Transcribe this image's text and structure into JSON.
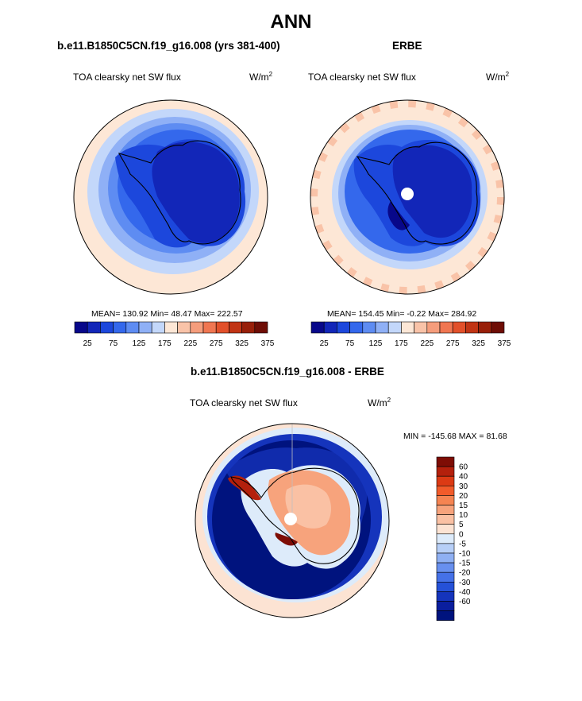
{
  "main_title": "ANN",
  "panels": [
    {
      "title": "b.e11.B1850C5CN.f19_g16.008 (yrs 381-400)",
      "variable": "TOA clearsky net SW flux",
      "units_base": "W/m",
      "units_exp": "2",
      "stats": "MEAN= 130.92  Min=  48.47  Max= 222.57"
    },
    {
      "title": "ERBE",
      "variable": "TOA clearsky net SW flux",
      "units_base": "W/m",
      "units_exp": "2",
      "stats": "MEAN= 154.45  Min=  -0.22  Max= 284.92"
    },
    {
      "title": "b.e11.B1850C5CN.f19_g16.008 - ERBE",
      "variable": "TOA clearsky net SW flux",
      "units_base": "W/m",
      "units_exp": "2",
      "stats": "MIN = -145.68 MAX =  81.68"
    }
  ],
  "colorbar_horizontal": {
    "colors": [
      "#08088a",
      "#1226b8",
      "#1c47dc",
      "#3468ec",
      "#5e8cf2",
      "#8fb0f6",
      "#c3d7fa",
      "#fde7d6",
      "#f9c3a8",
      "#f59d7c",
      "#f07651",
      "#e2502a",
      "#c13414",
      "#981f09",
      "#6e0d05"
    ],
    "tick_labels": [
      "25",
      "75",
      "125",
      "175",
      "225",
      "275",
      "325",
      "375"
    ]
  },
  "colorbar_vertical": {
    "colors": [
      "#7e0d05",
      "#b4200c",
      "#dc3a14",
      "#f25b2a",
      "#f58452",
      "#f7a37c",
      "#fac1a4",
      "#fce3d3",
      "#ddebfa",
      "#b7cff7",
      "#8fb0f3",
      "#6890ef",
      "#4571e8",
      "#2551d8",
      "#1534bc",
      "#0a1e9e",
      "#00137e"
    ],
    "tick_labels": [
      "60",
      "40",
      "30",
      "20",
      "15",
      "10",
      "5",
      "0",
      "-5",
      "-10",
      "-15",
      "-20",
      "-30",
      "-40",
      "-60"
    ]
  },
  "chart_data": [
    {
      "type": "heatmap",
      "projection": "south-polar-stereographic",
      "title": "b.e11.B1850C5CN.f19_g16.008 (yrs 381-400)",
      "variable": "TOA clearsky net SW flux",
      "units": "W/m2",
      "mean": 130.92,
      "min": 48.47,
      "max": 222.57,
      "contour_levels": [
        25,
        50,
        75,
        100,
        125,
        150,
        175,
        200,
        225,
        250,
        275,
        300,
        325,
        350,
        375
      ]
    },
    {
      "type": "heatmap",
      "projection": "south-polar-stereographic",
      "title": "ERBE",
      "variable": "TOA clearsky net SW flux",
      "units": "W/m2",
      "mean": 154.45,
      "min": -0.22,
      "max": 284.92,
      "contour_levels": [
        25,
        50,
        75,
        100,
        125,
        150,
        175,
        200,
        225,
        250,
        275,
        300,
        325,
        350,
        375
      ]
    },
    {
      "type": "heatmap",
      "projection": "south-polar-stereographic",
      "title": "b.e11.B1850C5CN.f19_g16.008 - ERBE",
      "variable": "TOA clearsky net SW flux",
      "units": "W/m2",
      "min": -145.68,
      "max": 81.68,
      "contour_levels": [
        -60,
        -40,
        -30,
        -20,
        -15,
        -10,
        -5,
        0,
        5,
        10,
        15,
        20,
        30,
        40,
        60
      ]
    }
  ]
}
